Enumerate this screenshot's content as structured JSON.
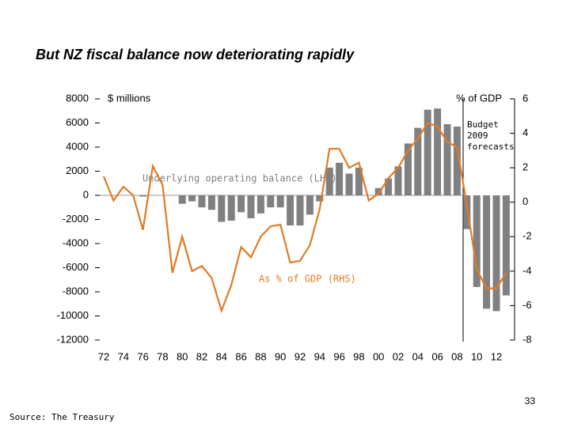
{
  "chart_data": {
    "type": "bar",
    "title": "But NZ fiscal balance now deteriorating rapidly",
    "y_label": "$ millions",
    "y2_label": "% of GDP",
    "annotations": {
      "forecast": [
        "Budget",
        "2009",
        "forecasts"
      ],
      "bars_label": "Underlying operating balance (LHS)",
      "line_label": "As % of GDP (RHS)"
    },
    "categories": [
      "72",
      null,
      "74",
      null,
      "76",
      null,
      "78",
      null,
      "80",
      null,
      "82",
      null,
      "84",
      null,
      "86",
      null,
      "88",
      null,
      "90",
      null,
      "92",
      null,
      "94",
      null,
      "96",
      null,
      "98",
      null,
      "00",
      null,
      "02",
      null,
      "04",
      null,
      "06",
      null,
      "08",
      null,
      "10",
      null,
      "12",
      null
    ],
    "series": [
      {
        "name": "Underlying operating balance (LHS)",
        "type": "bar",
        "axis": "y",
        "color": "#808080",
        "values": [
          null,
          null,
          null,
          null,
          -100,
          null,
          null,
          null,
          -700,
          -500,
          -1000,
          -1200,
          -2200,
          -2100,
          -1400,
          -1900,
          -1500,
          -1000,
          -1000,
          -2500,
          -2500,
          -1600,
          -500,
          2300,
          2700,
          1800,
          2300,
          null,
          600,
          1400,
          2400,
          4300,
          5600,
          7100,
          7200,
          5900,
          5700,
          -2800,
          -7600,
          -9400,
          -9600,
          -8300
        ]
      },
      {
        "name": "As % of GDP (RHS)",
        "type": "line",
        "axis": "y2",
        "color": "#e07b24",
        "values": [
          1.5,
          0.1,
          0.9,
          0.4,
          -1.6,
          2.1,
          1.0,
          -4.1,
          -2.0,
          -4.0,
          -3.7,
          -4.4,
          -6.3,
          -4.8,
          -2.6,
          -3.2,
          -2.0,
          -1.4,
          -1.3,
          -3.5,
          -3.4,
          -2.5,
          -0.4,
          3.1,
          3.1,
          2.0,
          2.3,
          0.1,
          0.5,
          1.4,
          2.0,
          3.0,
          3.7,
          4.6,
          4.4,
          3.5,
          3.2,
          -0.2,
          -3.9,
          -5.0,
          -5.0,
          -4.1
        ]
      }
    ],
    "ylim": [
      -12000,
      8000
    ],
    "yticks": [
      -12000,
      -10000,
      -8000,
      -6000,
      -4000,
      -2000,
      0,
      2000,
      4000,
      6000,
      8000
    ],
    "y2lim": [
      -8,
      6
    ],
    "y2ticks": [
      -8,
      -6,
      -4,
      -2,
      0,
      2,
      4,
      6
    ]
  },
  "footer": {
    "page_number": "33",
    "source": "Source: The Treasury"
  }
}
